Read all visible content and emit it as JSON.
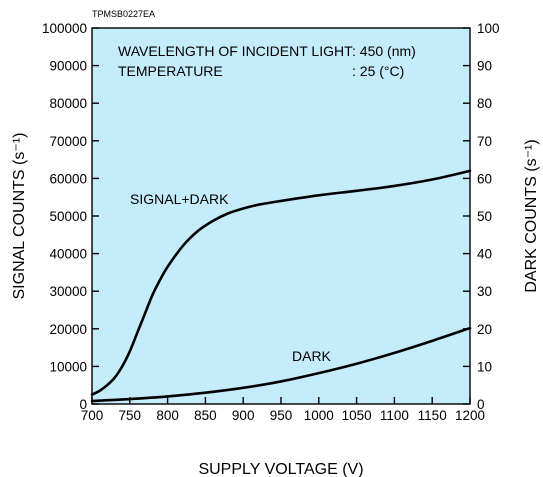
{
  "figure_code": "TPMSB0227EA",
  "chart_data": {
    "type": "line",
    "xlabel": "SUPPLY VOLTAGE (V)",
    "ylabel_left": "SIGNAL COUNTS (s⁻¹)",
    "ylabel_right": "DARK COUNTS (s⁻¹)",
    "xlim": [
      700,
      1200
    ],
    "ylim_left": [
      0,
      100000
    ],
    "ylim_right": [
      0,
      100
    ],
    "x_ticks": [
      700,
      750,
      800,
      850,
      900,
      950,
      1000,
      1050,
      1100,
      1150,
      1200
    ],
    "y_ticks_left": [
      0,
      10000,
      20000,
      30000,
      40000,
      50000,
      60000,
      70000,
      80000,
      90000,
      100000
    ],
    "y_ticks_right": [
      0,
      10,
      20,
      30,
      40,
      50,
      60,
      70,
      80,
      90,
      100
    ],
    "background_color": "#c5ecfb",
    "line_color": "#000000",
    "grid": false,
    "annotations": [
      {
        "id": "wavelength",
        "label": "WAVELENGTH OF INCIDENT LIGHT",
        "value": ": 450 (nm)"
      },
      {
        "id": "temperature",
        "label": "TEMPERATURE",
        "value": ": 25 (°C)"
      }
    ],
    "series": [
      {
        "name": "SIGNAL+DARK",
        "axis": "left",
        "x": [
          700,
          710,
          720,
          730,
          740,
          750,
          760,
          770,
          780,
          790,
          800,
          820,
          840,
          860,
          880,
          900,
          920,
          950,
          1000,
          1050,
          1100,
          1150,
          1200
        ],
        "values": [
          2500,
          3500,
          5000,
          7000,
          10000,
          14000,
          19000,
          24000,
          29000,
          33000,
          36500,
          42000,
          46000,
          48700,
          50700,
          52000,
          53000,
          54000,
          55500,
          56700,
          58000,
          59700,
          62000
        ]
      },
      {
        "name": "DARK",
        "axis": "right",
        "x": [
          700,
          750,
          800,
          850,
          900,
          950,
          1000,
          1050,
          1100,
          1150,
          1200
        ],
        "values": [
          0.8,
          1.3,
          2.0,
          3.0,
          4.3,
          6.0,
          8.2,
          10.7,
          13.6,
          16.8,
          20.2
        ]
      }
    ]
  }
}
